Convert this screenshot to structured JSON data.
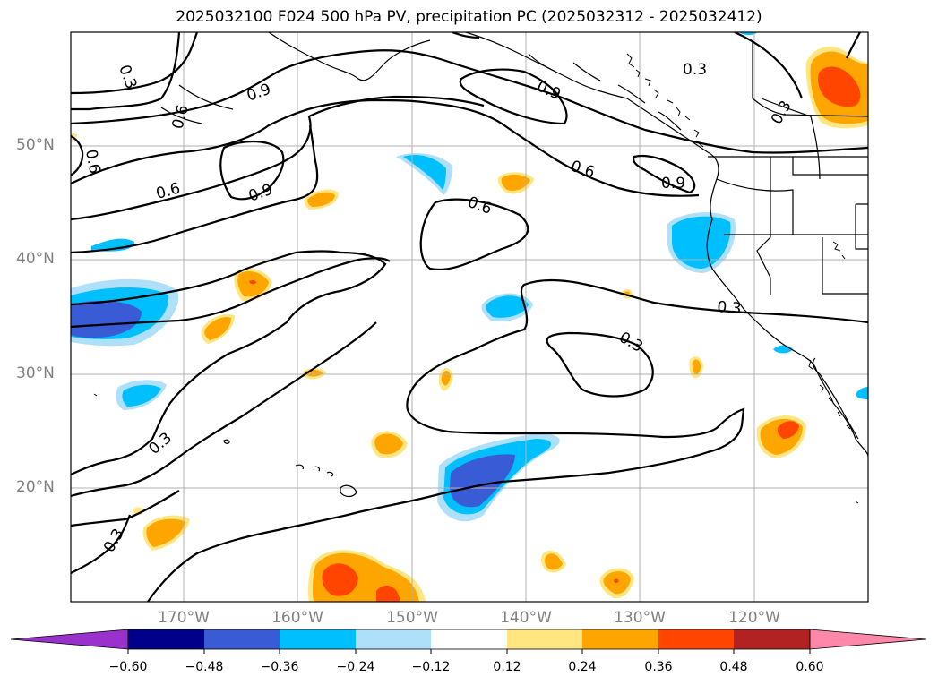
{
  "title": "2025032100 F024 500 hPa PV, precipitation PC (2025032312 - 2025032412)",
  "lat_labels": [
    "50°N",
    "40°N",
    "30°N",
    "20°N"
  ],
  "lon_labels": [
    "170°W",
    "160°W",
    "150°W",
    "140°W",
    "130°W",
    "120°W"
  ],
  "contour_labels": [
    "0.3",
    "0.6",
    "0.9",
    "0.6",
    "0.9",
    "0.6",
    "0.6",
    "0.9",
    "0.6",
    "0.3",
    "0.3",
    "0.3",
    "0.3",
    "0.3",
    "0.9",
    "0.3"
  ],
  "colorbar": {
    "ticks": [
      "−0.60",
      "−0.48",
      "−0.36",
      "−0.24",
      "−0.12",
      "0.12",
      "0.24",
      "0.36",
      "0.48",
      "0.60"
    ],
    "colors": [
      "#9932cc",
      "#00008b",
      "#3a5bd6",
      "#00bfff",
      "#aee0fa",
      "#ffffff",
      "#ffe680",
      "#ffa500",
      "#ff4500",
      "#b22222",
      "#ff88aa"
    ]
  },
  "colors": {
    "neg_light": "#aee0fa",
    "neg_mid": "#00bfff",
    "neg_dark": "#3a5bd6",
    "pos_light": "#ffe680",
    "pos_mid": "#ffa500",
    "pos_dark": "#ff4500",
    "grid": "#b0b0b0",
    "coast": "#000000"
  }
}
